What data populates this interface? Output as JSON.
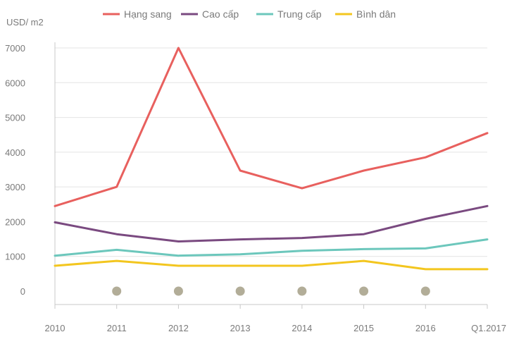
{
  "chart_data": {
    "type": "line",
    "ylabel": "USD/ m2",
    "categories": [
      "2010",
      "2011",
      "2012",
      "2013",
      "2014",
      "2015",
      "2016",
      "Q1.2017"
    ],
    "ylim": [
      0,
      7000
    ],
    "yticks": [
      0,
      1000,
      2000,
      3000,
      4000,
      5000,
      6000,
      7000
    ],
    "grid": true,
    "legend_position": "top",
    "series": [
      {
        "name": "Hạng sang",
        "color": "#e8605e",
        "values": [
          2450,
          3000,
          7000,
          3470,
          2960,
          3470,
          3850,
          4550
        ]
      },
      {
        "name": "Cao cấp",
        "color": "#7a4a80",
        "values": [
          1980,
          1640,
          1430,
          1490,
          1530,
          1640,
          2080,
          2450
        ]
      },
      {
        "name": "Trung cấp",
        "color": "#6cc7bc",
        "values": [
          1020,
          1190,
          1020,
          1060,
          1160,
          1210,
          1230,
          1490
        ]
      },
      {
        "name": "Bình dân",
        "color": "#f3c61f",
        "values": [
          730,
          870,
          730,
          730,
          730,
          870,
          630,
          630
        ]
      }
    ],
    "markers": {
      "color": "#b2ad98",
      "categories": [
        "2011",
        "2012",
        "2013",
        "2014",
        "2015",
        "2016"
      ],
      "value": 0
    }
  }
}
